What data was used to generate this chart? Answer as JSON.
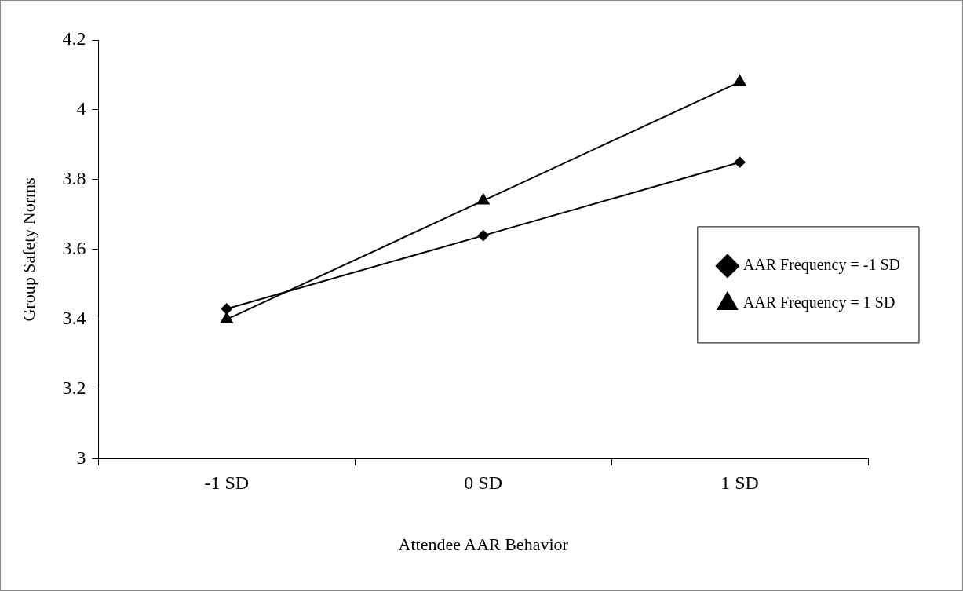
{
  "chart_data": {
    "type": "line",
    "xlabel": "Attendee AAR Behavior",
    "ylabel": "Group Safety Norms",
    "categories": [
      "-1 SD",
      "0 SD",
      "1 SD"
    ],
    "series": [
      {
        "name": "AAR Frequency = -1 SD",
        "color": "#000000",
        "marker": "diamond",
        "values": [
          3.43,
          3.64,
          3.85
        ]
      },
      {
        "name": "AAR Frequency = 1 SD",
        "color": "#000000",
        "marker": "triangle",
        "values": [
          3.4,
          3.74,
          4.08
        ]
      }
    ],
    "ylim": [
      3,
      4.2
    ],
    "yticks": [
      3,
      3.2,
      3.4,
      3.6,
      3.8,
      4,
      4.2
    ],
    "grid": false,
    "legend": "right",
    "line_style": "solid"
  }
}
